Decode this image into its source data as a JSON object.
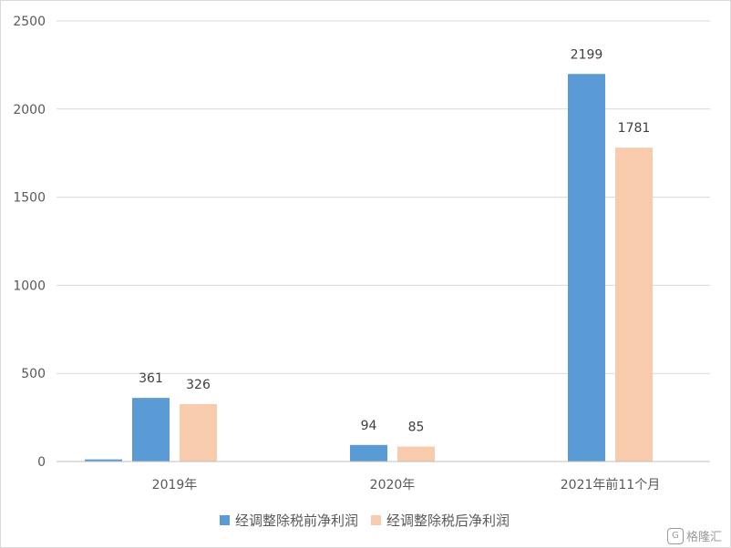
{
  "chart_data": {
    "type": "bar",
    "categories": [
      "2019年",
      "2020年",
      "2021年前11个月"
    ],
    "series": [
      {
        "name": "经调整除税前净利润",
        "values": [
          361,
          94,
          2199
        ],
        "color": "#5b9bd5"
      },
      {
        "name": "经调整除税后净利润",
        "values": [
          326,
          85,
          1781
        ],
        "color": "#f8cbad"
      }
    ],
    "ylim": [
      0,
      2500
    ],
    "yticks": [
      0,
      500,
      1000,
      1500,
      2000,
      2500
    ],
    "grid": true,
    "legend_position": "bottom",
    "extra_marks": [
      {
        "category": "2019年",
        "value": 12,
        "color": "#5b9bd5",
        "note_label": ""
      }
    ]
  },
  "watermark": {
    "text": "格隆汇",
    "icon": "gelonghui-logo-icon"
  }
}
